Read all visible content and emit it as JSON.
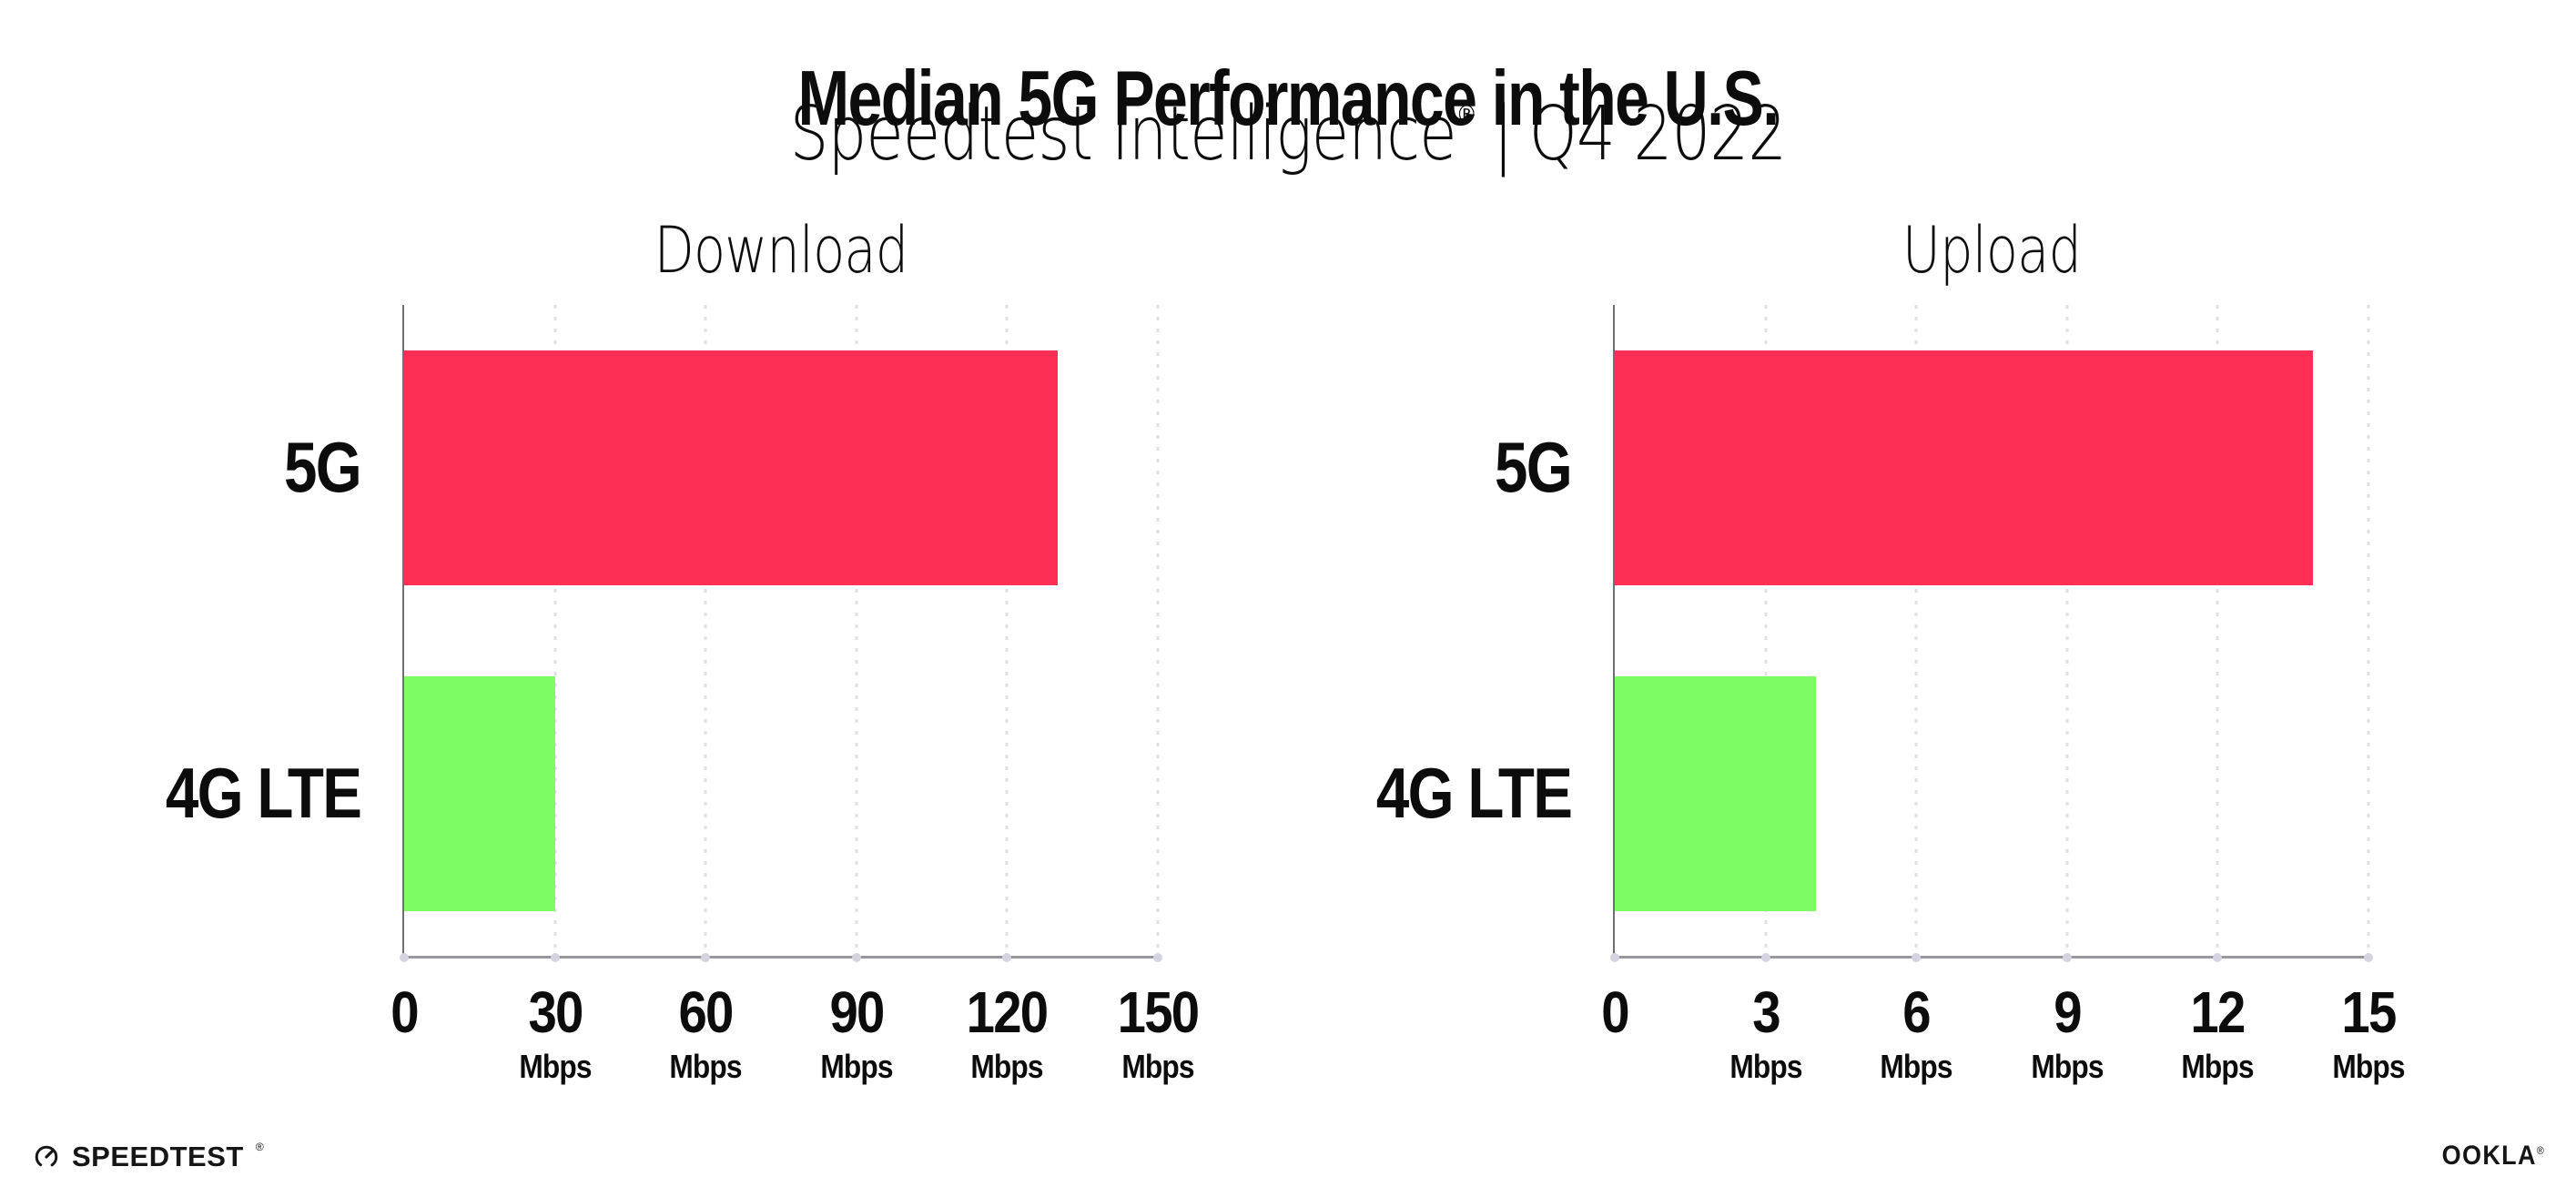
{
  "header": {
    "title": "Median 5G Performance in the U.S.",
    "subtitle_brand": "Speedtest Intelligence",
    "subtitle_reg": "®",
    "subtitle_sep": "|",
    "subtitle_period": "Q4 2022"
  },
  "chart_data": [
    {
      "type": "bar",
      "orientation": "horizontal",
      "title": "Download",
      "categories": [
        "5G",
        "4G LTE"
      ],
      "values": [
        130,
        30
      ],
      "value_unit": "Mbps",
      "bar_colors": [
        "#FF2E55",
        "#7DFC64"
      ],
      "xlim": [
        0,
        150
      ],
      "ticks": [
        0,
        30,
        60,
        90,
        120,
        150
      ],
      "tick_unit": "Mbps",
      "grid": "dotted-vertical",
      "legend": "none"
    },
    {
      "type": "bar",
      "orientation": "horizontal",
      "title": "Upload",
      "categories": [
        "5G",
        "4G LTE"
      ],
      "values": [
        13.9,
        4
      ],
      "value_unit": "Mbps",
      "bar_colors": [
        "#FF2E55",
        "#7DFC64"
      ],
      "xlim": [
        0,
        15
      ],
      "ticks": [
        0,
        3,
        6,
        9,
        12,
        15
      ],
      "tick_unit": "Mbps",
      "grid": "dotted-vertical",
      "legend": "none"
    }
  ],
  "footer": {
    "speedtest_logo": "SPEEDTEST",
    "speedtest_reg": "®",
    "ookla_logo": "OOKLA",
    "ookla_reg": "®"
  },
  "colors": {
    "bar_5g": "#FF2E55",
    "bar_4g_lte": "#7DFC64",
    "axis_line": "#97979c",
    "grid_dot": "#dfdfe9",
    "text": "#0c0c0c"
  }
}
